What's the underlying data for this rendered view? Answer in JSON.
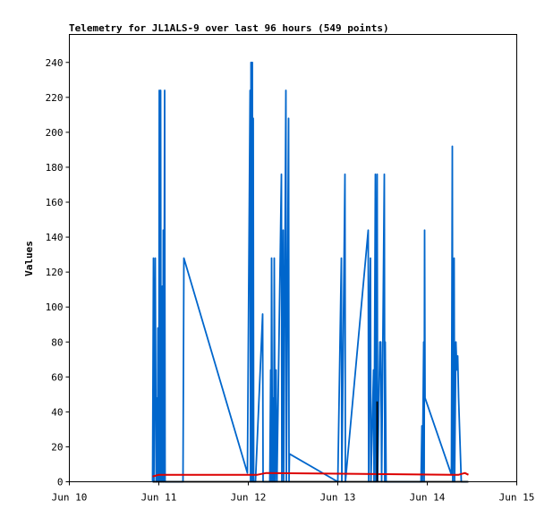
{
  "chart_data": {
    "type": "line",
    "title": "Telemetry for JL1ALS-9 over last 96 hours (549 points)",
    "xlabel": "",
    "ylabel": "Values",
    "ylim": [
      0,
      256
    ],
    "yticks": [
      0,
      20,
      40,
      60,
      80,
      100,
      120,
      140,
      160,
      180,
      200,
      220,
      240
    ],
    "xlim": [
      0,
      5
    ],
    "xticks": [
      {
        "x": 0,
        "label": "Jun 10"
      },
      {
        "x": 1,
        "label": "Jun 11"
      },
      {
        "x": 2,
        "label": "Jun 12"
      },
      {
        "x": 3,
        "label": "Jun 13"
      },
      {
        "x": 4,
        "label": "Jun 14"
      },
      {
        "x": 5,
        "label": "Jun 15"
      }
    ],
    "grid": false,
    "series": [
      {
        "color": "#0066cc",
        "points": [
          [
            0.93,
            0
          ],
          [
            0.94,
            128
          ],
          [
            0.945,
            0
          ],
          [
            0.96,
            128
          ],
          [
            0.97,
            0
          ],
          [
            0.975,
            48
          ],
          [
            0.985,
            0
          ],
          [
            0.99,
            88
          ],
          [
            1.0,
            0
          ],
          [
            1.005,
            224
          ],
          [
            1.015,
            0
          ],
          [
            1.02,
            224
          ],
          [
            1.025,
            10
          ],
          [
            1.03,
            0
          ],
          [
            1.04,
            112
          ],
          [
            1.045,
            0
          ],
          [
            1.05,
            144
          ],
          [
            1.055,
            0
          ],
          [
            1.065,
            224
          ],
          [
            1.07,
            0
          ],
          [
            1.27,
            0
          ],
          [
            1.275,
            64
          ],
          [
            1.28,
            128
          ],
          [
            1.99,
            5
          ],
          [
            2.02,
            224
          ],
          [
            2.025,
            0
          ],
          [
            2.03,
            240
          ],
          [
            2.035,
            0
          ],
          [
            2.045,
            240
          ],
          [
            2.05,
            0
          ],
          [
            2.055,
            208
          ],
          [
            2.06,
            0
          ],
          [
            2.075,
            0
          ],
          [
            2.08,
            0
          ],
          [
            2.16,
            96
          ],
          [
            2.165,
            0
          ],
          [
            2.24,
            0
          ],
          [
            2.25,
            64
          ],
          [
            2.255,
            0
          ],
          [
            2.26,
            128
          ],
          [
            2.27,
            0
          ],
          [
            2.275,
            48
          ],
          [
            2.285,
            0
          ],
          [
            2.29,
            128
          ],
          [
            2.3,
            0
          ],
          [
            2.31,
            64
          ],
          [
            2.32,
            0
          ],
          [
            2.37,
            176
          ],
          [
            2.375,
            0
          ],
          [
            2.39,
            144
          ],
          [
            2.395,
            0
          ],
          [
            2.42,
            224
          ],
          [
            2.425,
            0
          ],
          [
            2.45,
            208
          ],
          [
            2.455,
            0
          ],
          [
            2.46,
            16
          ],
          [
            3.0,
            0
          ],
          [
            3.04,
            128
          ],
          [
            3.045,
            0
          ],
          [
            3.08,
            176
          ],
          [
            3.085,
            0
          ],
          [
            3.34,
            144
          ],
          [
            3.345,
            0
          ],
          [
            3.36,
            112
          ],
          [
            3.365,
            128
          ],
          [
            3.37,
            0
          ],
          [
            3.4,
            64
          ],
          [
            3.405,
            0
          ],
          [
            3.42,
            176
          ],
          [
            3.425,
            0
          ],
          [
            3.44,
            176
          ],
          [
            3.445,
            0
          ],
          [
            3.47,
            80
          ],
          [
            3.48,
            80
          ],
          [
            3.49,
            0
          ],
          [
            3.52,
            176
          ],
          [
            3.525,
            0
          ],
          [
            3.53,
            80
          ],
          [
            3.54,
            0
          ],
          [
            3.93,
            0
          ],
          [
            3.94,
            32
          ],
          [
            3.945,
            0
          ],
          [
            3.96,
            80
          ],
          [
            3.965,
            0
          ],
          [
            3.97,
            144
          ],
          [
            3.975,
            48
          ],
          [
            4.27,
            4
          ],
          [
            4.28,
            192
          ],
          [
            4.285,
            0
          ],
          [
            4.3,
            128
          ],
          [
            4.305,
            0
          ],
          [
            4.32,
            80
          ],
          [
            4.33,
            64
          ],
          [
            4.34,
            72
          ],
          [
            4.35,
            48
          ],
          [
            4.38,
            0
          ],
          [
            4.45,
            0
          ]
        ]
      },
      {
        "color": "#dd0000",
        "points": [
          [
            0.93,
            3
          ],
          [
            1.0,
            4
          ],
          [
            1.99,
            4
          ],
          [
            2.1,
            4
          ],
          [
            2.2,
            5
          ],
          [
            4.3,
            4
          ],
          [
            4.35,
            4
          ],
          [
            4.42,
            5
          ],
          [
            4.46,
            4
          ]
        ]
      },
      {
        "color": "#000000",
        "points": [
          [
            0.93,
            0
          ],
          [
            4.46,
            0
          ]
        ]
      },
      {
        "color": "#000000",
        "points": [
          [
            3.44,
            46
          ],
          [
            3.44,
            0
          ]
        ]
      }
    ]
  }
}
